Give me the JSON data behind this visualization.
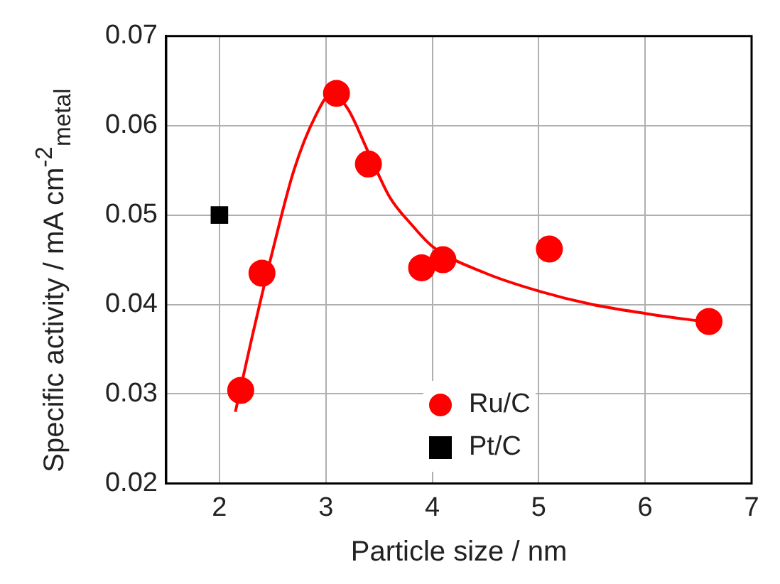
{
  "chart_data": {
    "type": "scatter",
    "xlabel": "Particle size / nm",
    "ylabel": "Specific activity / mA cm$^{-2}$$_{metal}$",
    "xlim": [
      1.5,
      7
    ],
    "xticks": [
      2,
      3,
      4,
      5,
      6,
      7
    ],
    "ylim": [
      0.02,
      0.07
    ],
    "yticks": [
      0.02,
      0.03,
      0.04,
      0.05,
      0.06,
      0.07
    ],
    "grid": true,
    "legend": "bottom",
    "marker": "circle",
    "series": [
      {
        "name": "Ru/C",
        "color": "#ff0000",
        "x": [
          2.2,
          2.4,
          3.1,
          3.4,
          3.9,
          4.1,
          5.1,
          6.6
        ],
        "values": [
          0.0304,
          0.0435,
          0.0636,
          0.0557,
          0.0441,
          0.045,
          0.0462,
          0.0381
        ]
      },
      {
        "name": "Pt/C",
        "color": "#000000",
        "marker": "square",
        "x": [
          2.0
        ],
        "values": [
          0.05
        ]
      },
      {
        "type": "line",
        "color": "#ff0000",
        "marker": "none",
        "line_style": "solid",
        "x": [
          2.15,
          2.3,
          2.5,
          2.7,
          2.9,
          3.05,
          3.2,
          3.4,
          3.6,
          3.8,
          4.0,
          4.5,
          5.0,
          5.5,
          6.0,
          6.6
        ],
        "values": [
          0.028,
          0.036,
          0.046,
          0.055,
          0.061,
          0.0635,
          0.062,
          0.057,
          0.052,
          0.049,
          0.0465,
          0.0435,
          0.0415,
          0.04,
          0.039,
          0.038
        ]
      }
    ]
  }
}
